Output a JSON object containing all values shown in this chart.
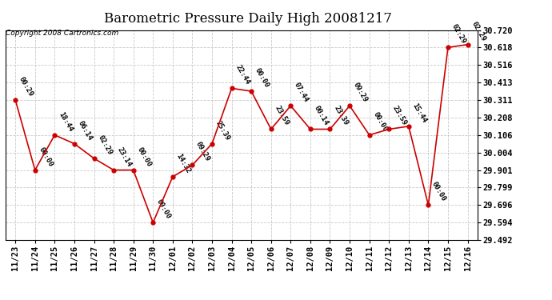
{
  "title": "Barometric Pressure Daily High 20081217",
  "copyright": "Copyright 2008 Cartronics.com",
  "x_labels": [
    "11/23",
    "11/24",
    "11/25",
    "11/26",
    "11/27",
    "11/28",
    "11/29",
    "11/30",
    "12/01",
    "12/02",
    "12/03",
    "12/04",
    "12/05",
    "12/06",
    "12/07",
    "12/08",
    "12/09",
    "12/10",
    "12/11",
    "12/12",
    "12/13",
    "12/14",
    "12/15",
    "12/16"
  ],
  "y_values": [
    30.311,
    29.901,
    30.106,
    30.055,
    29.969,
    29.901,
    29.901,
    29.594,
    29.862,
    29.93,
    30.055,
    30.379,
    30.362,
    30.14,
    30.277,
    30.14,
    30.14,
    30.277,
    30.106,
    30.14,
    30.157,
    29.696,
    30.618,
    30.635
  ],
  "annotations": [
    "00:29",
    "00:00",
    "18:44",
    "06:14",
    "02:29",
    "23:14",
    "00:00",
    "00:00",
    "14:32",
    "09:29",
    "25:39",
    "22:44",
    "00:00",
    "23:59",
    "07:44",
    "00:14",
    "23:39",
    "09:29",
    "00:00",
    "23:59",
    "15:44",
    "00:00",
    "02:29",
    "02:29"
  ],
  "y_min": 29.492,
  "y_max": 30.72,
  "y_ticks": [
    29.492,
    29.594,
    29.696,
    29.799,
    29.901,
    30.004,
    30.106,
    30.208,
    30.311,
    30.413,
    30.516,
    30.618,
    30.72
  ],
  "line_color": "#cc0000",
  "marker_color": "#cc0000",
  "bg_color": "#ffffff",
  "grid_color": "#bbbbbb",
  "title_fontsize": 12,
  "copyright_fontsize": 6.5,
  "annotation_fontsize": 6.5,
  "tick_fontsize": 7.5
}
